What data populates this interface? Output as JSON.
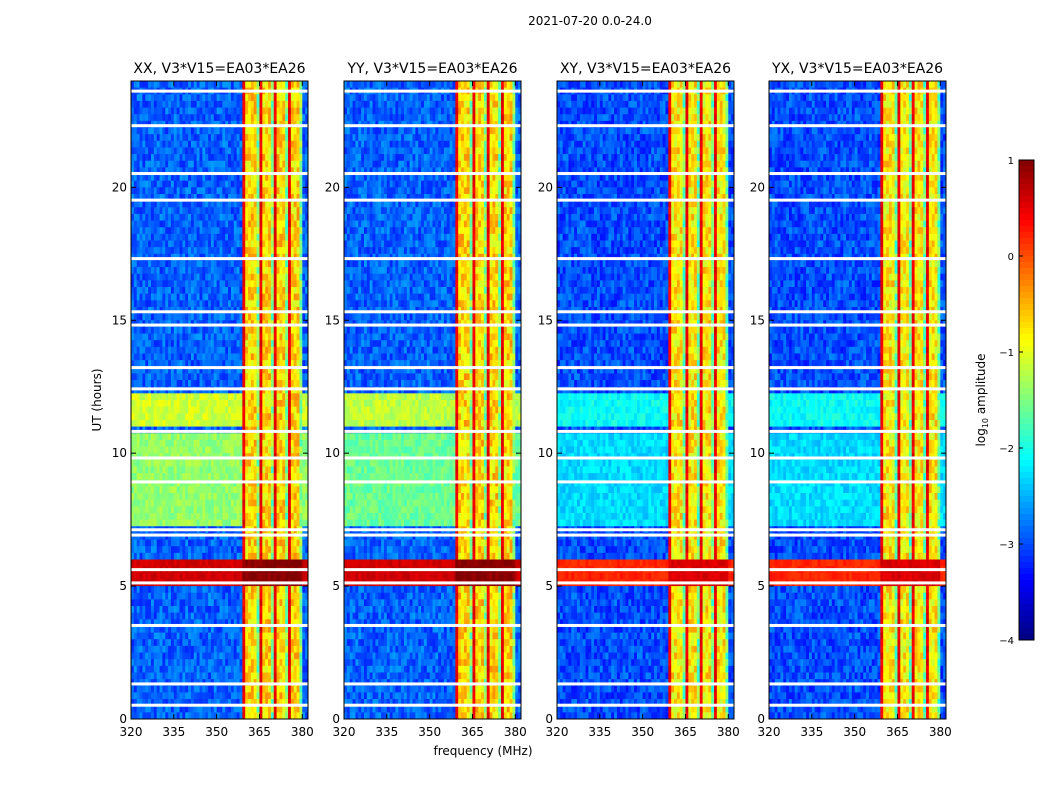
{
  "suptitle": "2021-07-20 0.0-24.0",
  "colors": {
    "jet": [
      "#00007f",
      "#0000ff",
      "#007fff",
      "#00ffff",
      "#7fff7f",
      "#ffff00",
      "#ff7f00",
      "#ff0000",
      "#7f0000"
    ],
    "axes": "#000000",
    "gap": "#ffffff"
  },
  "chart_data": {
    "type": "heatmap",
    "xlabel": "frequency (MHz)",
    "ylabel": "UT (hours)",
    "xlim": [
      320,
      382
    ],
    "ylim": [
      0,
      24
    ],
    "xticks": [
      "320",
      "335",
      "350",
      "365",
      "380"
    ],
    "xtick_values": [
      320,
      335,
      350,
      365,
      380
    ],
    "yticks": [
      "0",
      "5",
      "10",
      "15",
      "20"
    ],
    "ytick_values": [
      0,
      5,
      10,
      15,
      20
    ],
    "colorbar": {
      "label": "log10 amplitude",
      "label_main": "log",
      "label_sub": "10",
      "label_rest": " amplitude",
      "range": [
        -4,
        1
      ],
      "ticks": [
        "−4",
        "−3",
        "−2",
        "−1",
        "0",
        "1"
      ],
      "tick_values": [
        -4,
        -3,
        -2,
        -1,
        0,
        1
      ]
    },
    "panels": [
      {
        "title": "XX, V3*V15=EA03*EA26",
        "background": -2.9,
        "rfi_band_mhz": [
          359.5,
          380
        ],
        "rfi_level": -0.7,
        "elevated_hours": [
          [
            7.2,
            10.8,
            -1.4
          ],
          [
            11.0,
            12.3,
            -1.1
          ]
        ],
        "strong_hours": [
          5.0,
          5.9
        ],
        "strong_level": 0.6
      },
      {
        "title": "YY, V3*V15=EA03*EA26",
        "background": -2.9,
        "rfi_band_mhz": [
          359.5,
          380
        ],
        "rfi_level": -0.7,
        "elevated_hours": [
          [
            7.2,
            10.8,
            -1.6
          ],
          [
            11.0,
            12.3,
            -1.2
          ]
        ],
        "strong_hours": [
          5.0,
          5.9
        ],
        "strong_level": 0.6
      },
      {
        "title": "XY, V3*V15=EA03*EA26",
        "background": -3.0,
        "rfi_band_mhz": [
          359.5,
          380
        ],
        "rfi_level": -0.8,
        "elevated_hours": [
          [
            7.2,
            10.8,
            -2.3
          ],
          [
            11.0,
            12.3,
            -2.1
          ]
        ],
        "strong_hours": [
          5.0,
          5.9
        ],
        "strong_level": 0.2
      },
      {
        "title": "YX, V3*V15=EA03*EA26",
        "background": -3.0,
        "rfi_band_mhz": [
          359.5,
          380
        ],
        "rfi_level": -0.8,
        "elevated_hours": [
          [
            7.2,
            10.8,
            -2.3
          ],
          [
            11.0,
            12.3,
            -2.1
          ]
        ],
        "strong_hours": [
          5.0,
          5.9
        ],
        "strong_level": 0.2
      }
    ],
    "flagged_hours": [
      0.5,
      1.3,
      3.5,
      5.1,
      5.6,
      6.9,
      7.1,
      8.9,
      9.8,
      10.8,
      12.4,
      13.2,
      14.8,
      15.3,
      17.3,
      19.5,
      20.5,
      22.3,
      23.6
    ]
  }
}
